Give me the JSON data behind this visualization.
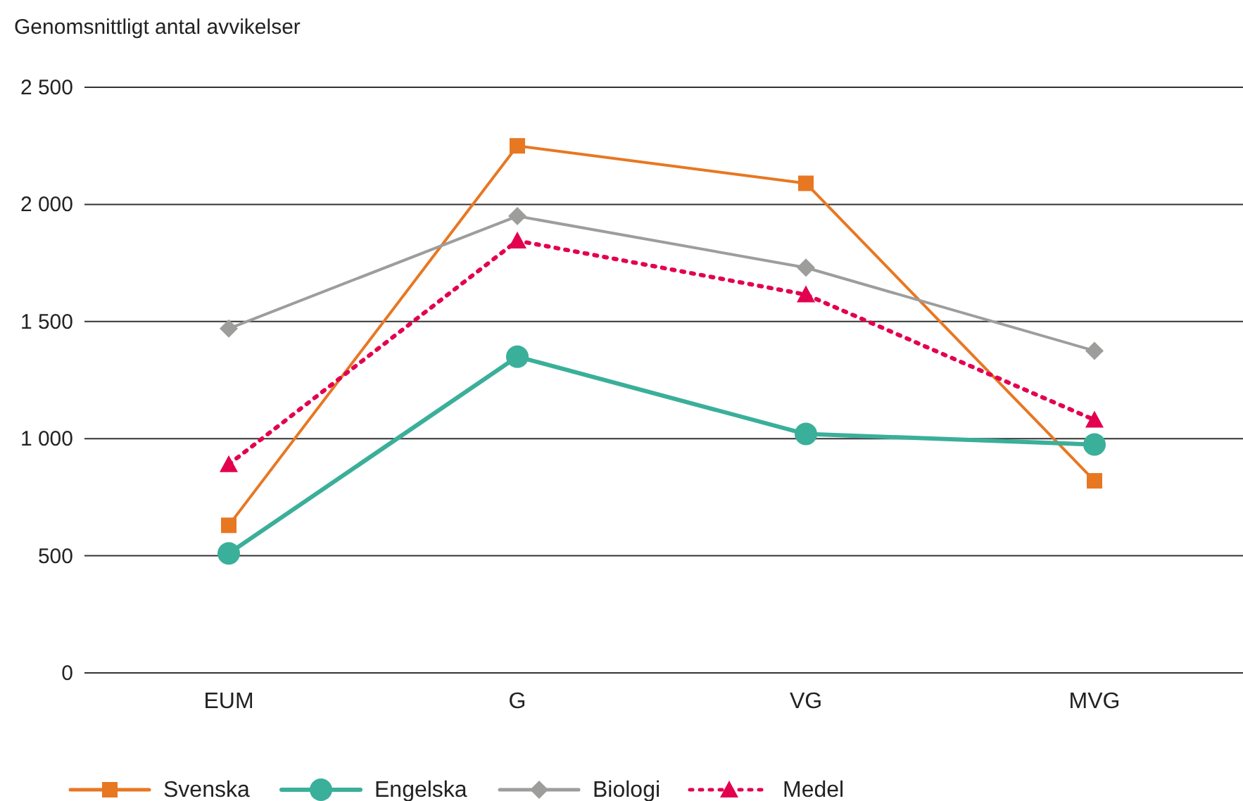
{
  "chart_data": {
    "type": "line",
    "ylabel": "Genomsnittligt antal avvikelser",
    "categories": [
      "EUM",
      "G",
      "VG",
      "MVG"
    ],
    "series": [
      {
        "name": "Svenska",
        "color": "#e87722",
        "values": [
          630,
          2250,
          2090,
          820
        ],
        "marker": "square",
        "line_style": "solid"
      },
      {
        "name": "Engelska",
        "color": "#3aaf9a",
        "values": [
          510,
          1350,
          1020,
          975
        ],
        "marker": "circle",
        "line_style": "solid"
      },
      {
        "name": "Biologi",
        "color": "#9d9d9c",
        "values": [
          1470,
          1950,
          1730,
          1375
        ],
        "marker": "diamond",
        "line_style": "solid"
      },
      {
        "name": "Medel",
        "color": "#e2004f",
        "values": [
          890,
          1845,
          1615,
          1080
        ],
        "marker": "triangle",
        "line_style": "dotted"
      }
    ],
    "ylim": [
      0,
      2500
    ],
    "yticks": [
      0,
      {
        "value": 500,
        "label": "500"
      },
      {
        "value": 1000,
        "label": "1 000"
      },
      {
        "value": 1500,
        "label": "1 500"
      },
      {
        "value": 2000,
        "label": "2 000"
      },
      {
        "value": 2500,
        "label": "2 500"
      }
    ],
    "grid": "y",
    "legend": "bottom"
  }
}
